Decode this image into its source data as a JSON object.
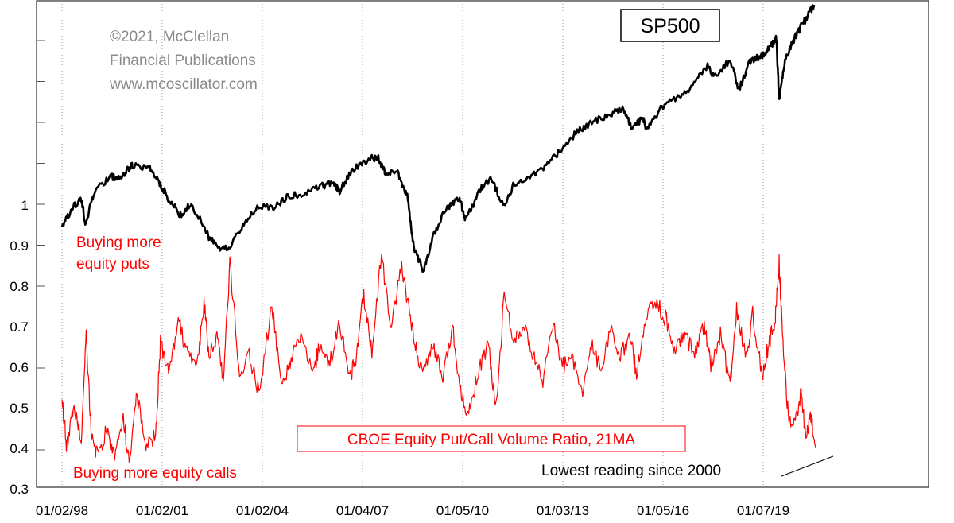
{
  "chart_data": {
    "type": "line",
    "title": "SP500",
    "copyright": [
      "©2021, McClellan",
      "Financial Publications",
      "www.mcoscillator.com"
    ],
    "x_tick_labels": [
      "01/02/98",
      "01/02/01",
      "01/02/04",
      "01/04/07",
      "01/05/10",
      "01/03/13",
      "01/05/16",
      "01/07/19"
    ],
    "y_tick_labels": [
      "1",
      "0.9",
      "0.8",
      "0.7",
      "0.6",
      "0.5",
      "0.4",
      "0.3"
    ],
    "y_ticks": [
      1.0,
      0.9,
      0.8,
      0.7,
      0.6,
      0.5,
      0.4,
      0.3
    ],
    "ylim": [
      0.3,
      1.0
    ],
    "xlim": [
      1998.0,
      2021.35
    ],
    "grid": {
      "vertical_dotted": true,
      "horizontal": false
    },
    "annotations": {
      "puts": [
        "Buying more",
        "equity puts"
      ],
      "calls": "Buying more equity calls",
      "lowest": "Lowest reading since 2000"
    },
    "series": [
      {
        "name": "SP500",
        "color": "#000000",
        "scale": "log",
        "x": [
          1998.0,
          1998.3,
          1998.6,
          1998.72,
          1999.0,
          1999.5,
          1999.8,
          2000.0,
          2000.2,
          2000.7,
          2001.0,
          2001.3,
          2001.7,
          2002.0,
          2002.55,
          2002.8,
          2003.2,
          2003.6,
          2004.0,
          2004.6,
          2005.0,
          2005.5,
          2006.0,
          2006.4,
          2006.6,
          2007.0,
          2007.5,
          2007.8,
          2008.0,
          2008.4,
          2008.7,
          2008.9,
          2009.2,
          2009.5,
          2009.9,
          2010.3,
          2010.5,
          2011.0,
          2011.3,
          2011.7,
          2012.0,
          2012.5,
          2013.0,
          2013.5,
          2014.0,
          2014.5,
          2015.0,
          2015.4,
          2015.65,
          2016.0,
          2016.1,
          2016.5,
          2017.0,
          2017.5,
          2018.0,
          2018.2,
          2018.7,
          2018.98,
          2019.3,
          2019.7,
          2020.0,
          2020.13,
          2020.22,
          2020.4,
          2020.7,
          2021.0,
          2021.3
        ],
        "values": [
          970,
          1110,
          1180,
          1000,
          1230,
          1370,
          1340,
          1420,
          1470,
          1440,
          1320,
          1180,
          1050,
          1150,
          920,
          860,
          860,
          990,
          1110,
          1120,
          1200,
          1220,
          1280,
          1310,
          1240,
          1420,
          1530,
          1550,
          1400,
          1390,
          1200,
          860,
          740,
          920,
          1110,
          1190,
          1030,
          1270,
          1340,
          1120,
          1300,
          1360,
          1470,
          1640,
          1840,
          1960,
          2060,
          2120,
          1880,
          2000,
          1850,
          2100,
          2270,
          2450,
          2820,
          2620,
          2900,
          2400,
          2900,
          2980,
          3230,
          3380,
          2250,
          2900,
          3380,
          3750,
          4180
        ]
      },
      {
        "name": "CBOE Equity Put/Call Volume Ratio, 21MA",
        "color": "#ff0000",
        "x": [
          1998.0,
          1998.15,
          1998.35,
          1998.6,
          1998.75,
          1998.9,
          1999.1,
          1999.4,
          1999.6,
          1999.9,
          2000.1,
          2000.3,
          2000.6,
          2000.9,
          2001.05,
          2001.3,
          2001.6,
          2001.9,
          2002.2,
          2002.4,
          2002.55,
          2002.8,
          2003.0,
          2003.2,
          2003.5,
          2003.8,
          2004.1,
          2004.5,
          2004.8,
          2005.1,
          2005.4,
          2005.8,
          2006.0,
          2006.3,
          2006.6,
          2006.9,
          2007.1,
          2007.35,
          2007.6,
          2007.9,
          2008.2,
          2008.5,
          2008.75,
          2008.95,
          2009.2,
          2009.5,
          2009.8,
          2010.1,
          2010.35,
          2010.6,
          2010.9,
          2011.2,
          2011.45,
          2011.7,
          2012.0,
          2012.3,
          2012.6,
          2012.9,
          2013.2,
          2013.5,
          2013.8,
          2014.1,
          2014.4,
          2014.7,
          2015.0,
          2015.3,
          2015.6,
          2015.8,
          2016.1,
          2016.4,
          2016.7,
          2017.0,
          2017.3,
          2017.6,
          2017.9,
          2018.1,
          2018.4,
          2018.7,
          2018.9,
          2019.2,
          2019.4,
          2019.7,
          2019.9,
          2020.1,
          2020.22,
          2020.32,
          2020.5,
          2020.7,
          2020.9,
          2021.05,
          2021.2,
          2021.35
        ],
        "values": [
          0.52,
          0.4,
          0.5,
          0.43,
          0.68,
          0.44,
          0.38,
          0.45,
          0.38,
          0.47,
          0.36,
          0.54,
          0.4,
          0.43,
          0.66,
          0.58,
          0.72,
          0.63,
          0.62,
          0.76,
          0.63,
          0.68,
          0.56,
          0.86,
          0.58,
          0.63,
          0.54,
          0.75,
          0.56,
          0.62,
          0.68,
          0.59,
          0.66,
          0.61,
          0.71,
          0.57,
          0.62,
          0.78,
          0.63,
          0.88,
          0.69,
          0.85,
          0.75,
          0.65,
          0.58,
          0.66,
          0.57,
          0.7,
          0.54,
          0.48,
          0.59,
          0.66,
          0.5,
          0.78,
          0.66,
          0.71,
          0.63,
          0.56,
          0.71,
          0.6,
          0.63,
          0.53,
          0.66,
          0.59,
          0.7,
          0.63,
          0.68,
          0.58,
          0.73,
          0.76,
          0.72,
          0.64,
          0.68,
          0.63,
          0.7,
          0.6,
          0.68,
          0.56,
          0.74,
          0.62,
          0.73,
          0.58,
          0.66,
          0.72,
          0.86,
          0.68,
          0.48,
          0.46,
          0.54,
          0.42,
          0.48,
          0.4
        ]
      }
    ]
  }
}
